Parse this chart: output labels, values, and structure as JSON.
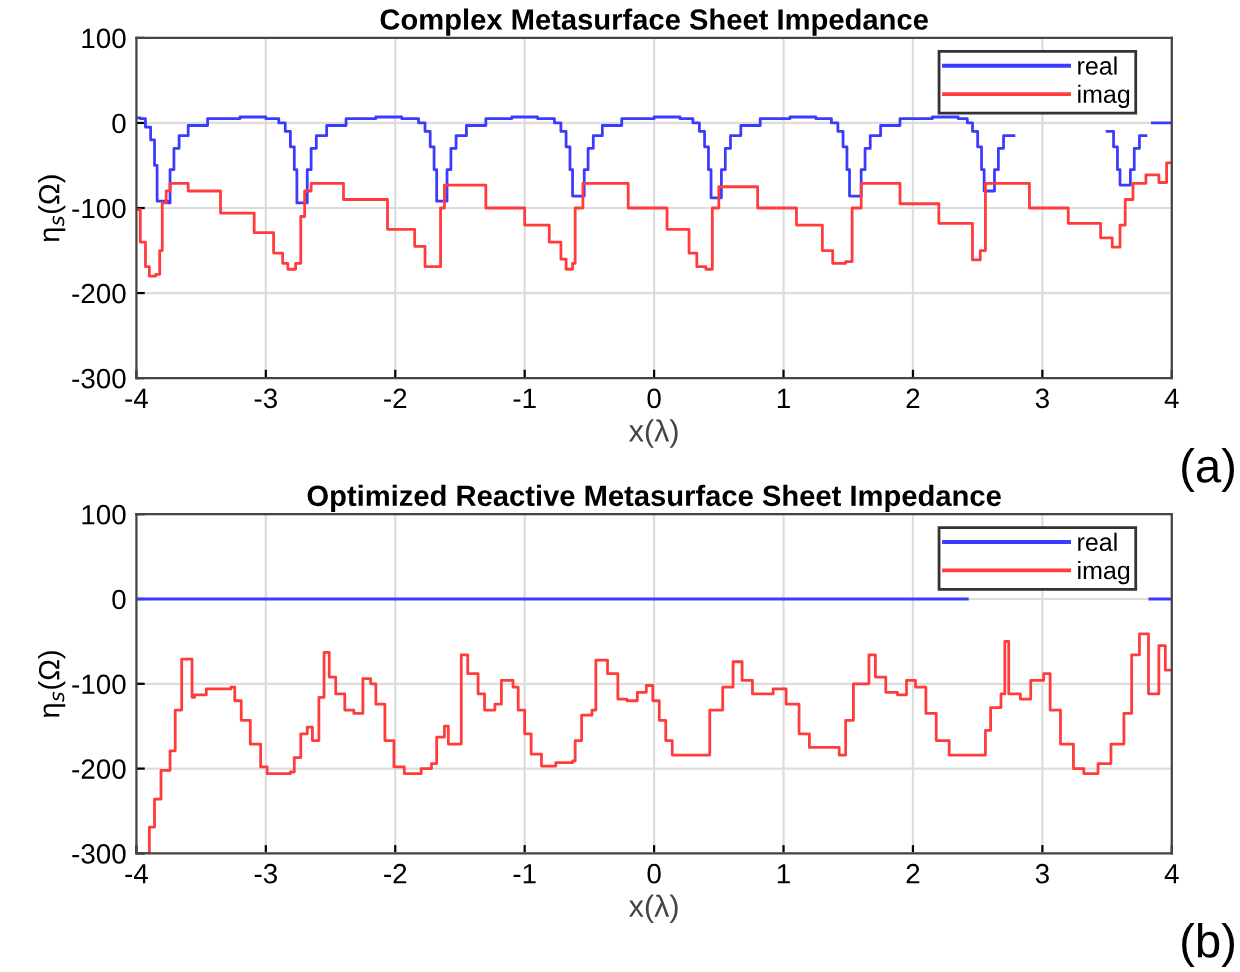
{
  "chart_data": [
    {
      "type": "step",
      "title": "Complex Metasurface Sheet Impedance",
      "xlabel": "x(λ)",
      "ylabel": "η$_{s}$(Ω)",
      "annotations": [
        "(a)"
      ],
      "xlim": [
        -4,
        4
      ],
      "ylim": [
        -300,
        100
      ],
      "xticks": [
        -4,
        -3,
        -2,
        -1,
        0,
        1,
        2,
        3,
        4
      ],
      "yticks": [
        -300,
        -200,
        -100,
        0,
        100
      ],
      "grid": true,
      "legend": "top right",
      "series": [
        {
          "name": "real",
          "color": "#3b3bff",
          "x": [
            -4,
            -3.97,
            -3.93,
            -3.89,
            -3.86,
            -3.84,
            -3.76,
            -3.74,
            -3.71,
            -3.67,
            -3.6,
            -3.45,
            -3.2,
            -3.0,
            -2.9,
            -2.85,
            -2.81,
            -2.78,
            -2.76,
            -2.7,
            -2.68,
            -2.65,
            -2.61,
            -2.53,
            -2.38,
            -2.15,
            -1.95,
            -1.82,
            -1.77,
            -1.73,
            -1.7,
            -1.68,
            -1.62,
            -1.6,
            -1.57,
            -1.53,
            -1.45,
            -1.3,
            -1.1,
            -0.9,
            -0.77,
            -0.72,
            -0.68,
            -0.65,
            -0.63,
            -0.56,
            -0.54,
            -0.51,
            -0.47,
            -0.4,
            -0.25,
            0.0,
            0.2,
            0.3,
            0.35,
            0.39,
            0.42,
            0.44,
            0.5,
            0.52,
            0.55,
            0.59,
            0.67,
            0.82,
            1.05,
            1.25,
            1.37,
            1.42,
            1.46,
            1.49,
            1.51,
            1.58,
            1.6,
            1.63,
            1.67,
            1.75,
            1.9,
            2.15,
            2.35,
            2.42,
            2.46,
            2.5,
            2.53,
            2.55,
            2.61,
            2.63,
            2.66,
            2.7,
            2.78,
            3.5,
            3.55,
            3.58,
            3.6,
            3.66,
            3.68,
            3.71,
            3.75,
            3.8,
            3.85,
            4
          ],
          "values": [
            6,
            5,
            -5,
            -20,
            -50,
            -92,
            -94,
            -55,
            -30,
            -15,
            -3,
            5,
            7,
            5,
            0,
            -10,
            -28,
            -55,
            -94,
            -94,
            -55,
            -30,
            -15,
            -3,
            5,
            7,
            5,
            0,
            -10,
            -28,
            -55,
            -92,
            -92,
            -55,
            -30,
            -15,
            -3,
            5,
            7,
            5,
            0,
            -10,
            -28,
            -55,
            -86,
            -86,
            -55,
            -30,
            -15,
            -3,
            5,
            7,
            5,
            0,
            -10,
            -28,
            -55,
            -88,
            -88,
            -55,
            -30,
            -15,
            -3,
            5,
            7,
            5,
            0,
            -10,
            -28,
            -55,
            -86,
            -86,
            -55,
            -30,
            -15,
            -3,
            5,
            7,
            5,
            0,
            -10,
            -28,
            -55,
            -80,
            -80,
            -55,
            -30,
            -15,
            null,
            -10,
            -28,
            -55,
            -73,
            -73,
            -55,
            -30,
            -15,
            null,
            0,
            0
          ]
        },
        {
          "name": "imag",
          "color": "#ff3b3b",
          "x": [
            -4,
            -3.97,
            -3.93,
            -3.9,
            -3.85,
            -3.82,
            -3.8,
            -3.77,
            -3.74,
            -3.6,
            -3.35,
            -3.09,
            -2.94,
            -2.87,
            -2.83,
            -2.77,
            -2.73,
            -2.7,
            -2.65,
            -2.4,
            -2.06,
            -1.85,
            -1.77,
            -1.7,
            -1.65,
            -1.62,
            -1.3,
            -1.0,
            -0.81,
            -0.72,
            -0.68,
            -0.63,
            -0.61,
            -0.55,
            -0.2,
            0.1,
            0.27,
            0.33,
            0.4,
            0.45,
            0.5,
            0.8,
            1.1,
            1.3,
            1.38,
            1.48,
            1.53,
            1.6,
            1.9,
            2.2,
            2.46,
            2.52,
            2.56,
            2.9,
            3.2,
            3.45,
            3.54,
            3.6,
            3.64,
            3.7,
            3.8,
            3.9,
            3.96,
            4
          ],
          "values": [
            -102,
            -140,
            -169,
            -180,
            -178,
            -150,
            -94,
            -80,
            -71,
            -80,
            -106,
            -129,
            -153,
            -165,
            -172,
            -165,
            -110,
            -80,
            -71,
            -90,
            -125,
            -145,
            -169,
            -169,
            -100,
            -73,
            -100,
            -120,
            -140,
            -160,
            -172,
            -165,
            -100,
            -71,
            -100,
            -125,
            -153,
            -169,
            -172,
            -100,
            -75,
            -100,
            -120,
            -150,
            -165,
            -163,
            -100,
            -71,
            -95,
            -118,
            -161,
            -150,
            -71,
            -100,
            -118,
            -135,
            -146,
            -120,
            -90,
            -71,
            -61,
            -70,
            -47,
            -47
          ]
        }
      ]
    },
    {
      "type": "step",
      "title": "Optimized Reactive Metasurface Sheet Impedance",
      "xlabel": "x(λ)",
      "ylabel": "η$_{s}$(Ω)",
      "annotations": [
        "(b)"
      ],
      "xlim": [
        -4,
        4
      ],
      "ylim": [
        -300,
        100
      ],
      "xticks": [
        -4,
        -3,
        -2,
        -1,
        0,
        1,
        2,
        3,
        4
      ],
      "yticks": [
        -300,
        -200,
        -100,
        0,
        100
      ],
      "grid": true,
      "legend": "top right",
      "series": [
        {
          "name": "real",
          "color": "#3b3bff",
          "x": [
            -4,
            2.42,
            3.83,
            4
          ],
          "values": [
            0,
            null,
            0,
            0
          ]
        },
        {
          "name": "imag",
          "color": "#ff3b3b",
          "x": [
            -3.92,
            -3.9,
            -3.86,
            -3.81,
            -3.74,
            -3.7,
            -3.65,
            -3.57,
            -3.55,
            -3.46,
            -3.27,
            -3.24,
            -3.19,
            -3.12,
            -3.04,
            -2.99,
            -2.81,
            -2.78,
            -2.73,
            -2.68,
            -2.64,
            -2.59,
            -2.55,
            -2.51,
            -2.46,
            -2.39,
            -2.32,
            -2.25,
            -2.19,
            -2.15,
            -2.08,
            -2.01,
            -1.93,
            -1.8,
            -1.72,
            -1.68,
            -1.62,
            -1.59,
            -1.49,
            -1.44,
            -1.36,
            -1.31,
            -1.23,
            -1.18,
            -1.09,
            -1.05,
            -1.0,
            -0.95,
            -0.87,
            -0.76,
            -0.63,
            -0.61,
            -0.56,
            -0.48,
            -0.45,
            -0.36,
            -0.28,
            -0.21,
            -0.13,
            -0.06,
            -0.01,
            0.04,
            0.09,
            0.14,
            0.37,
            0.43,
            0.53,
            0.61,
            0.68,
            0.76,
            0.92,
            1.02,
            1.12,
            1.2,
            1.43,
            1.48,
            1.54,
            1.66,
            1.71,
            1.79,
            1.88,
            1.95,
            2.02,
            2.1,
            2.18,
            2.28,
            2.49,
            2.56,
            2.6,
            2.68,
            2.71,
            2.74,
            2.83,
            2.91,
            3.01,
            3.06,
            3.14,
            3.24,
            3.32,
            3.43,
            3.53,
            3.63,
            3.69,
            3.75,
            3.82,
            3.9,
            3.91,
            3.95,
            3.98,
            4
          ],
          "values": [
            -300,
            -269,
            -236,
            -202,
            -179,
            -131,
            -71,
            -116,
            -113,
            -106,
            -104,
            -120,
            -143,
            -171,
            -198,
            -206,
            -204,
            -187,
            -159,
            -151,
            -167,
            -116,
            -63,
            -92,
            -112,
            -131,
            -135,
            -94,
            -100,
            -124,
            -167,
            -198,
            -206,
            -200,
            -194,
            -163,
            -150,
            -171,
            -66,
            -88,
            -112,
            -131,
            -124,
            -96,
            -104,
            -131,
            -159,
            -183,
            -197,
            -193,
            -191,
            -167,
            -137,
            -131,
            -72,
            -88,
            -118,
            -120,
            -110,
            -102,
            -120,
            -143,
            -167,
            -184,
            -184,
            -131,
            -104,
            -74,
            -96,
            -112,
            -106,
            -124,
            -159,
            -175,
            -184,
            -143,
            -100,
            -66,
            -92,
            -110,
            -113,
            -96,
            -104,
            -135,
            -167,
            -184,
            -184,
            -155,
            -128,
            -112,
            -50,
            -112,
            -118,
            -96,
            -88,
            -131,
            -171,
            -200,
            -206,
            -194,
            -171,
            -135,
            -66,
            -41,
            -112,
            -55,
            -55,
            -84,
            -84,
            -84
          ]
        }
      ]
    }
  ]
}
